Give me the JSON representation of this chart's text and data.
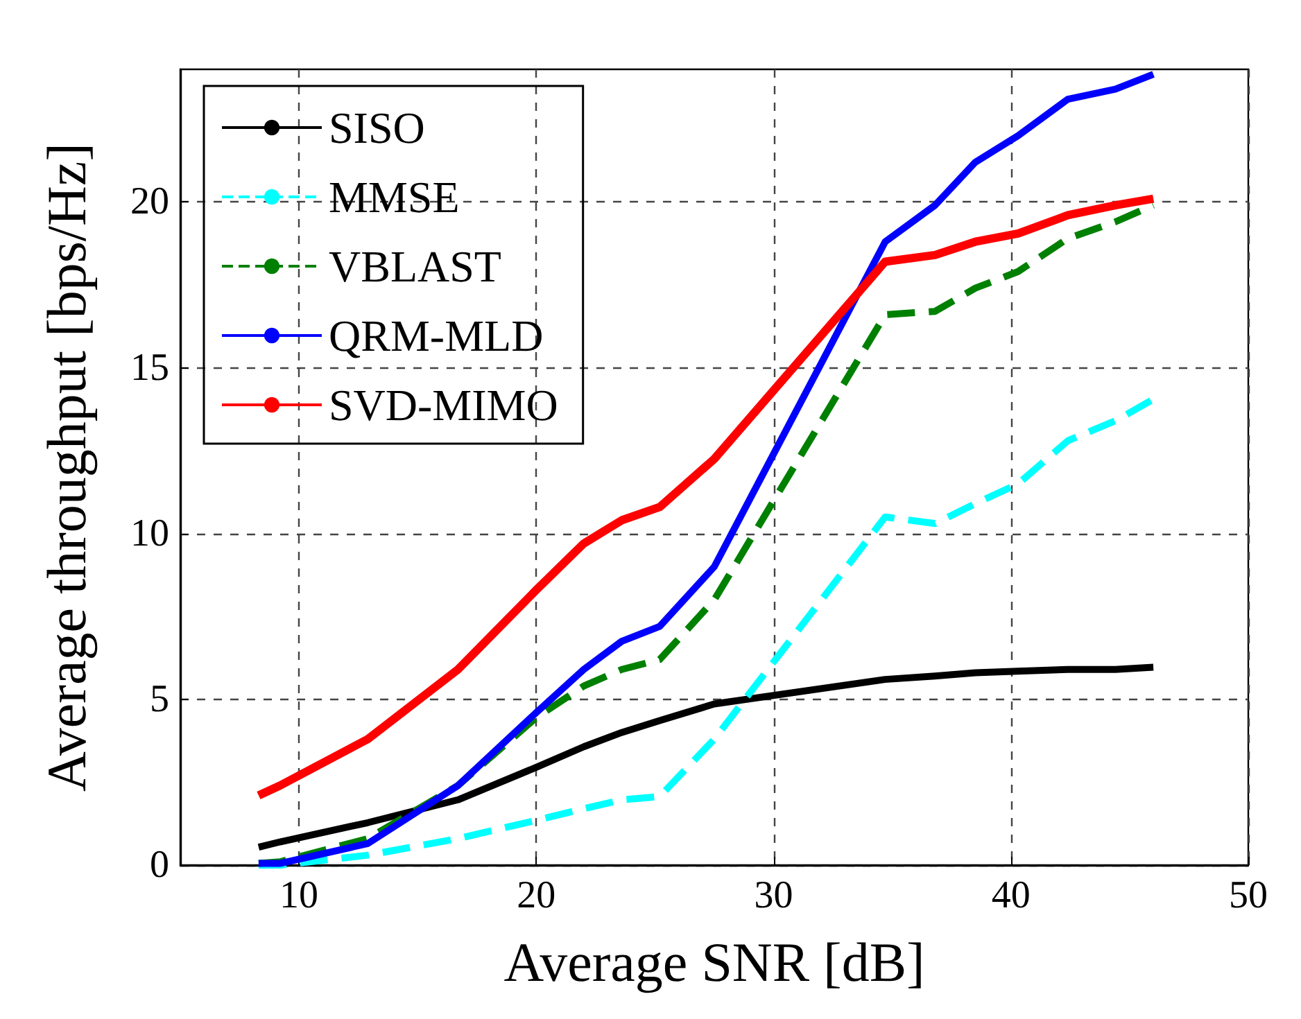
{
  "chart_data": {
    "type": "line",
    "xlabel": "Average SNR [dB]",
    "ylabel": "Average throughput [bps/Hz]",
    "x": [
      8.3,
      9.2,
      12.9,
      16.7,
      20,
      22,
      23.6,
      25.2,
      27.5,
      34.7,
      36.8,
      38.5,
      40.3,
      42.4,
      44.4,
      46
    ],
    "xlim": [
      5,
      50
    ],
    "xticks": [
      10,
      20,
      30,
      40,
      50
    ],
    "ylim": [
      0,
      24
    ],
    "yticks": [
      0,
      5,
      10,
      15,
      20
    ],
    "grid": true,
    "legend": "top left",
    "marker": "none",
    "series": [
      {
        "name": "SISO",
        "color": "#000000",
        "line_style": "solid",
        "values": [
          0.54,
          0.7,
          1.28,
          1.97,
          2.95,
          3.57,
          4.0,
          4.36,
          4.86,
          5.6,
          5.7,
          5.8,
          5.85,
          5.9,
          5.9,
          5.97
        ]
      },
      {
        "name": "MMSE",
        "color": "#00ffff",
        "line_style": "dashed",
        "values": [
          0,
          0,
          0.3,
          0.8,
          1.35,
          1.7,
          1.97,
          2.07,
          3.8,
          10.5,
          10.3,
          10.9,
          11.5,
          12.8,
          13.4,
          14.05
        ]
      },
      {
        "name": "VBLAST",
        "color": "#008000",
        "line_style": "dashed",
        "values": [
          0.05,
          0.1,
          0.8,
          2.4,
          4.45,
          5.4,
          5.9,
          6.2,
          8.0,
          16.6,
          16.7,
          17.4,
          17.9,
          18.9,
          19.4,
          19.9
        ]
      },
      {
        "name": "QRM-MLD",
        "color": "#0000ff",
        "line_style": "solid",
        "values": [
          0.05,
          0.05,
          0.65,
          2.4,
          4.6,
          5.9,
          6.75,
          7.2,
          9.0,
          18.8,
          19.9,
          21.2,
          22.0,
          23.1,
          23.4,
          23.85
        ]
      },
      {
        "name": "SVD-MIMO",
        "color": "#ff0000",
        "line_style": "solid",
        "values": [
          2.1,
          2.4,
          3.8,
          5.9,
          8.3,
          9.7,
          10.4,
          10.8,
          12.25,
          18.2,
          18.4,
          18.8,
          19.05,
          19.6,
          19.9,
          20.1
        ]
      }
    ]
  }
}
